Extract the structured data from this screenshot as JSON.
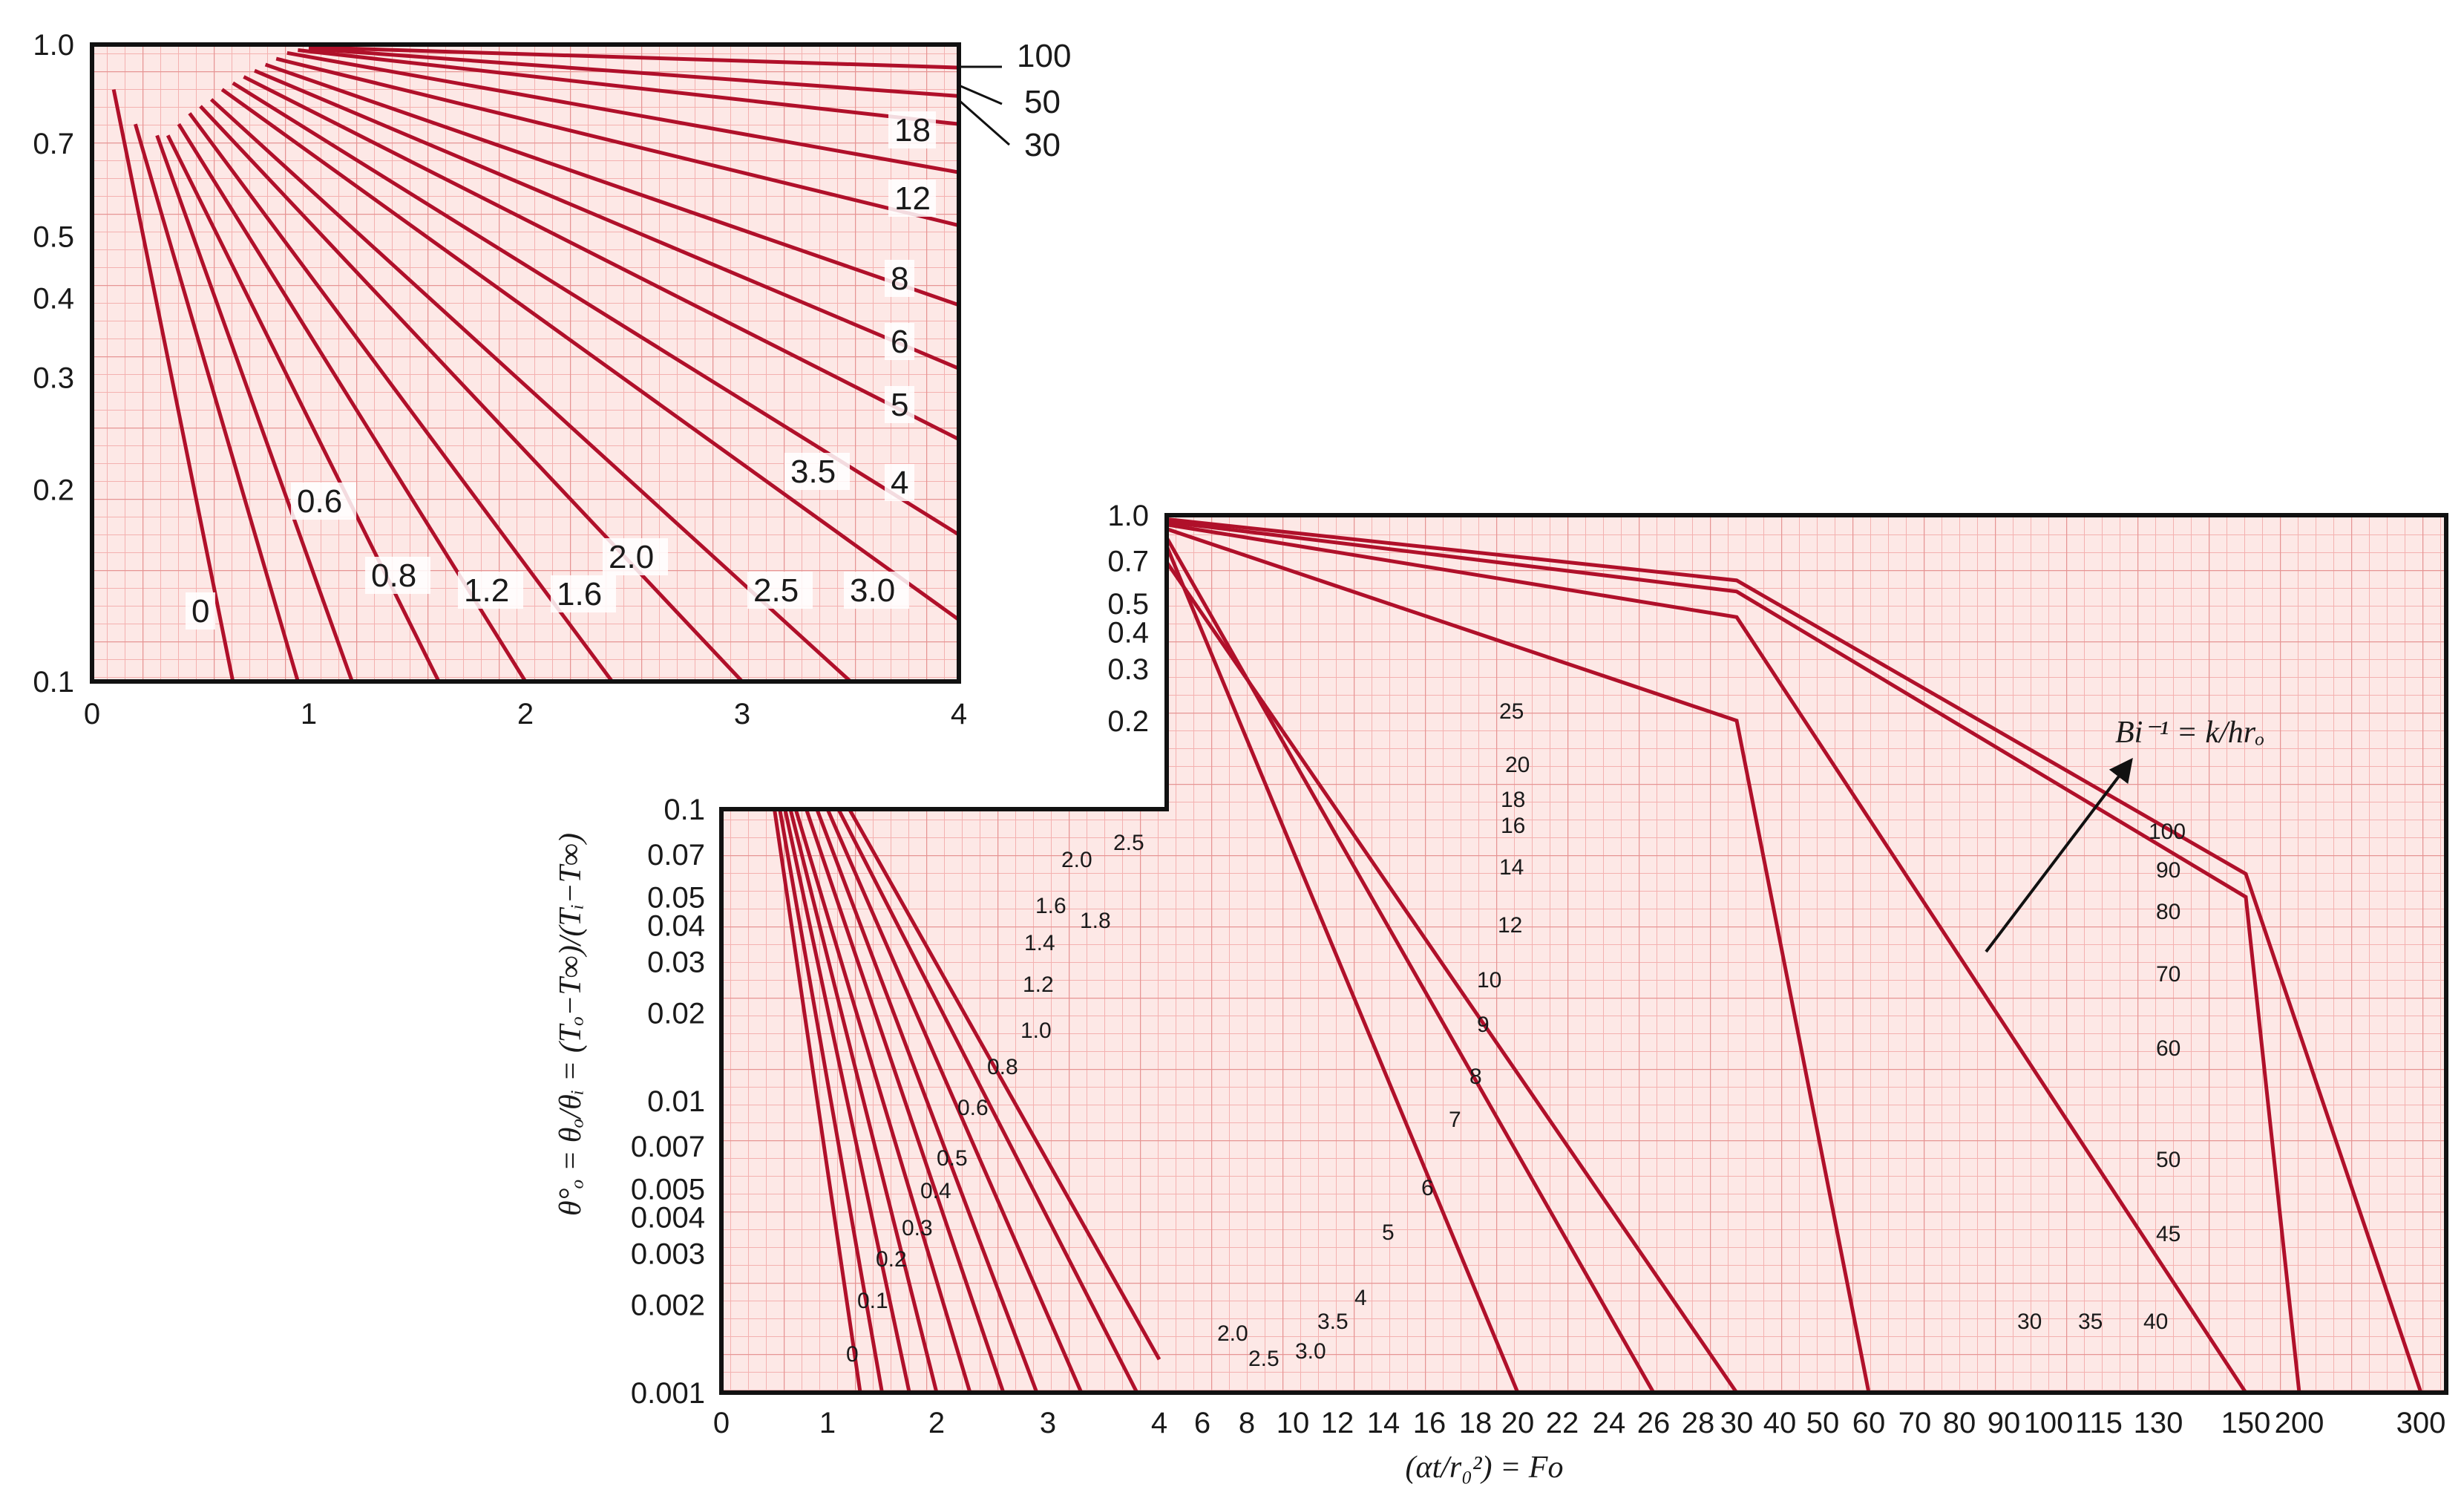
{
  "chart_data": [
    {
      "type": "line",
      "yscale": "log",
      "xlim": [
        0,
        4
      ],
      "ylim": [
        0.1,
        1.0
      ],
      "x_ticks": [
        "0",
        "1",
        "2",
        "3",
        "4"
      ],
      "y_ticks": [
        "1.0",
        "0.7",
        "0.5",
        "0.4",
        "0.3",
        "0.2",
        "0.1"
      ],
      "grid": true,
      "series_labels": [
        "100",
        "50",
        "30",
        "18",
        "12",
        "8",
        "6",
        "5",
        "4",
        "3.5",
        "3.0",
        "2.5",
        "2.0",
        "1.6",
        "1.2",
        "0.8",
        "0.6",
        "0"
      ],
      "series": [
        {
          "name": "0",
          "x": [
            0.1,
            0.65
          ],
          "y": [
            0.85,
            0.1
          ]
        },
        {
          "name": "0.6",
          "x": [
            0.2,
            0.95
          ],
          "y": [
            0.75,
            0.1
          ]
        },
        {
          "name": "0.8",
          "x": [
            0.3,
            1.2
          ],
          "y": [
            0.72,
            0.1
          ]
        },
        {
          "name": "1.2",
          "x": [
            0.35,
            1.6
          ],
          "y": [
            0.72,
            0.1
          ]
        },
        {
          "name": "1.6",
          "x": [
            0.4,
            2.0
          ],
          "y": [
            0.75,
            0.1
          ]
        },
        {
          "name": "2.0",
          "x": [
            0.45,
            2.4
          ],
          "y": [
            0.78,
            0.1
          ]
        },
        {
          "name": "2.5",
          "x": [
            0.5,
            3.0
          ],
          "y": [
            0.8,
            0.1
          ]
        },
        {
          "name": "3.0",
          "x": [
            0.55,
            3.5
          ],
          "y": [
            0.82,
            0.1
          ]
        },
        {
          "name": "3.5",
          "x": [
            0.6,
            4.0
          ],
          "y": [
            0.85,
            0.125
          ]
        },
        {
          "name": "4",
          "x": [
            0.65,
            4.0
          ],
          "y": [
            0.87,
            0.17
          ]
        },
        {
          "name": "5",
          "x": [
            0.7,
            4.0
          ],
          "y": [
            0.89,
            0.24
          ]
        },
        {
          "name": "6",
          "x": [
            0.75,
            4.0
          ],
          "y": [
            0.91,
            0.31
          ]
        },
        {
          "name": "8",
          "x": [
            0.8,
            4.0
          ],
          "y": [
            0.93,
            0.39
          ]
        },
        {
          "name": "12",
          "x": [
            0.85,
            4.0
          ],
          "y": [
            0.95,
            0.52
          ]
        },
        {
          "name": "18",
          "x": [
            0.9,
            4.0
          ],
          "y": [
            0.97,
            0.63
          ]
        },
        {
          "name": "30",
          "x": [
            0.95,
            4.0
          ],
          "y": [
            0.98,
            0.75
          ]
        },
        {
          "name": "50",
          "x": [
            1.0,
            4.0
          ],
          "y": [
            0.985,
            0.83
          ]
        },
        {
          "name": "100",
          "x": [
            1.0,
            4.0
          ],
          "y": [
            0.99,
            0.92
          ]
        }
      ]
    },
    {
      "type": "line",
      "yscale": "log",
      "xlabel": "(αt/r₀²) = Fo",
      "ylabel": "θ°ₒ = θₒ/θᵢ = (Tₒ−T∞)/(Tᵢ−T∞)",
      "ylim": [
        0.001,
        1.0
      ],
      "x_ticks": [
        "0",
        "1",
        "2",
        "3",
        "4",
        "6",
        "8",
        "10",
        "12",
        "14",
        "16",
        "18",
        "20",
        "22",
        "24",
        "26",
        "28",
        "30",
        "40",
        "50",
        "60",
        "70",
        "80",
        "90",
        "100",
        "115",
        "130",
        "150",
        "200",
        "300"
      ],
      "y_ticks": [
        "1.0",
        "0.7",
        "0.5",
        "0.4",
        "0.3",
        "0.2",
        "0.1",
        "0.07",
        "0.05",
        "0.04",
        "0.03",
        "0.02",
        "0.01",
        "0.007",
        "0.005",
        "0.004",
        "0.003",
        "0.002",
        "0.001"
      ],
      "grid": true,
      "annotation": "Bi⁻¹ = k/hrₒ",
      "series_labels_left": [
        "0",
        "0.1",
        "0.2",
        "0.3",
        "0.4",
        "0.5",
        "0.6",
        "0.8",
        "1.0",
        "1.2",
        "1.4",
        "1.6",
        "1.8",
        "2.0",
        "2.5"
      ],
      "series_labels_bottom": [
        "2.0",
        "2.5",
        "3.0",
        "3.5",
        "4",
        "5",
        "6",
        "7",
        "8",
        "9",
        "10",
        "12",
        "14",
        "16",
        "18",
        "20",
        "25",
        "30",
        "35",
        "40"
      ],
      "series_labels_right": [
        "100",
        "90",
        "80",
        "70",
        "60",
        "50",
        "45"
      ],
      "series": [
        {
          "name": "0",
          "x": [
            0.5,
            1.3
          ],
          "y": [
            0.1,
            0.001
          ]
        },
        {
          "name": "0.1",
          "x": [
            0.55,
            1.5
          ],
          "y": [
            0.1,
            0.001
          ]
        },
        {
          "name": "0.2",
          "x": [
            0.6,
            1.75
          ],
          "y": [
            0.1,
            0.001
          ]
        },
        {
          "name": "0.3",
          "x": [
            0.65,
            2.0
          ],
          "y": [
            0.1,
            0.001
          ]
        },
        {
          "name": "0.4",
          "x": [
            0.7,
            2.3
          ],
          "y": [
            0.1,
            0.001
          ]
        },
        {
          "name": "0.5",
          "x": [
            0.8,
            2.6
          ],
          "y": [
            0.1,
            0.001
          ]
        },
        {
          "name": "0.6",
          "x": [
            0.9,
            2.9
          ],
          "y": [
            0.1,
            0.001
          ]
        },
        {
          "name": "0.8",
          "x": [
            1.0,
            3.3
          ],
          "y": [
            0.1,
            0.001
          ]
        },
        {
          "name": "1.0",
          "x": [
            1.1,
            3.8
          ],
          "y": [
            0.1,
            0.001
          ]
        },
        {
          "name": "1.2",
          "x": [
            1.2,
            4.0
          ],
          "y": [
            0.1,
            0.0013
          ]
        },
        {
          "name": "2.5",
          "x": [
            4.3,
            30
          ],
          "y": [
            0.7,
            0.001
          ]
        },
        {
          "name": "5",
          "x": [
            4.3,
            20
          ],
          "y": [
            0.8,
            0.001
          ]
        },
        {
          "name": "10",
          "x": [
            4.3,
            26
          ],
          "y": [
            0.85,
            0.001
          ]
        },
        {
          "name": "25",
          "x": [
            4.3,
            30,
            60
          ],
          "y": [
            0.9,
            0.2,
            0.001
          ]
        },
        {
          "name": "40",
          "x": [
            4.3,
            30,
            150
          ],
          "y": [
            0.93,
            0.45,
            0.001
          ]
        },
        {
          "name": "60",
          "x": [
            4.3,
            30,
            150,
            200
          ],
          "y": [
            0.95,
            0.55,
            0.05,
            0.001
          ]
        },
        {
          "name": "100",
          "x": [
            4.3,
            30,
            150,
            300
          ],
          "y": [
            0.97,
            0.6,
            0.06,
            0.001
          ]
        }
      ]
    }
  ]
}
